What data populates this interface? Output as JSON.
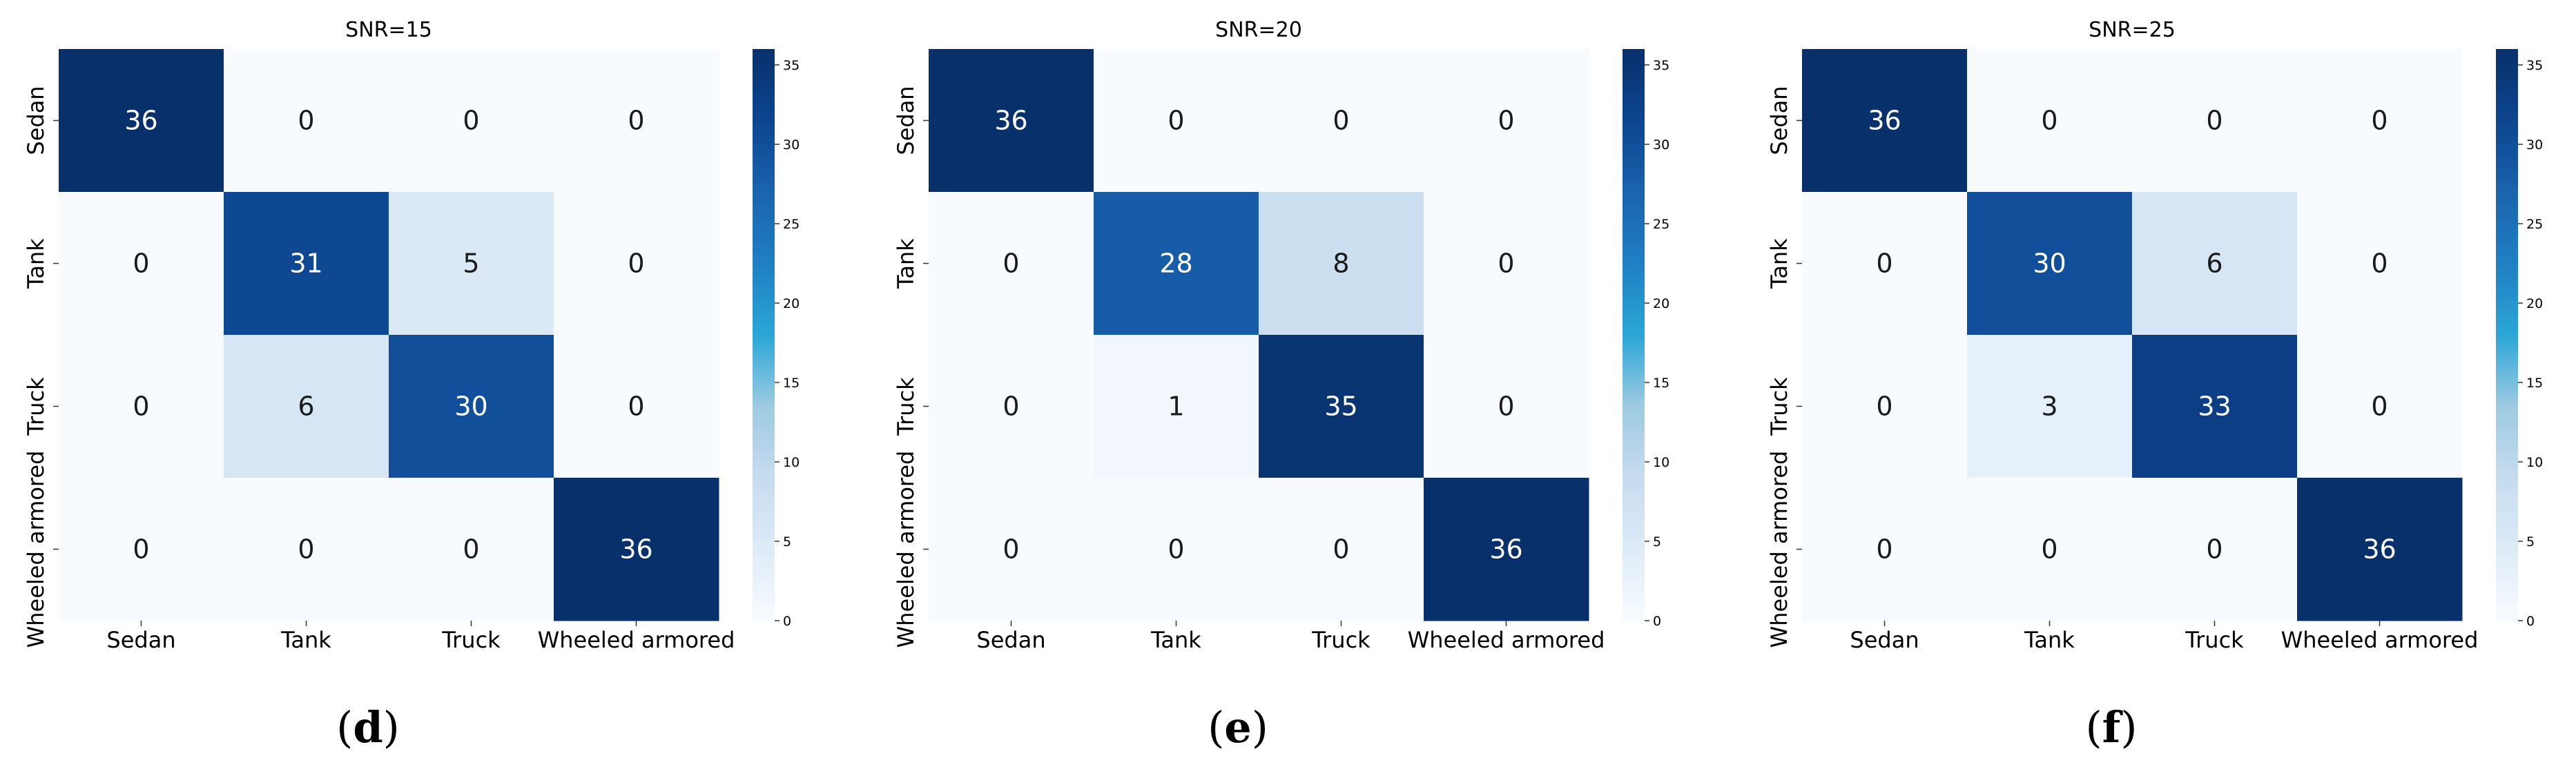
{
  "chart_data": [
    {
      "type": "heatmap",
      "title": "SNR=15",
      "caption": "(d)",
      "x_labels": [
        "Sedan",
        "Tank",
        "Truck",
        "Wheeled armored"
      ],
      "y_labels": [
        "Sedan",
        "Tank",
        "Truck",
        "Wheeled armored"
      ],
      "matrix": [
        [
          36,
          0,
          0,
          0
        ],
        [
          0,
          31,
          5,
          0
        ],
        [
          0,
          6,
          30,
          0
        ],
        [
          0,
          0,
          0,
          36
        ]
      ],
      "colorbar": {
        "colormap": "Blues",
        "range": [
          0,
          36
        ],
        "ticks": [
          "0",
          "5",
          "10",
          "15",
          "20",
          "25",
          "30",
          "35"
        ]
      }
    },
    {
      "type": "heatmap",
      "title": "SNR=20",
      "caption": "(e)",
      "x_labels": [
        "Sedan",
        "Tank",
        "Truck",
        "Wheeled armored"
      ],
      "y_labels": [
        "Sedan",
        "Tank",
        "Truck",
        "Wheeled armored"
      ],
      "matrix": [
        [
          36,
          0,
          0,
          0
        ],
        [
          0,
          28,
          8,
          0
        ],
        [
          0,
          1,
          35,
          0
        ],
        [
          0,
          0,
          0,
          36
        ]
      ],
      "colorbar": {
        "colormap": "Blues",
        "range": [
          0,
          36
        ],
        "ticks": [
          "0",
          "5",
          "10",
          "15",
          "20",
          "25",
          "30",
          "35"
        ]
      }
    },
    {
      "type": "heatmap",
      "title": "SNR=25",
      "caption": "(f)",
      "x_labels": [
        "Sedan",
        "Tank",
        "Truck",
        "Wheeled armored"
      ],
      "y_labels": [
        "Sedan",
        "Tank",
        "Truck",
        "Wheeled armored"
      ],
      "matrix": [
        [
          36,
          0,
          0,
          0
        ],
        [
          0,
          30,
          6,
          0
        ],
        [
          0,
          3,
          33,
          0
        ],
        [
          0,
          0,
          0,
          36
        ]
      ],
      "colorbar": {
        "colormap": "Blues",
        "range": [
          0,
          36
        ],
        "ticks": [
          "0",
          "5",
          "10",
          "15",
          "20",
          "25",
          "30",
          "35"
        ]
      }
    }
  ]
}
